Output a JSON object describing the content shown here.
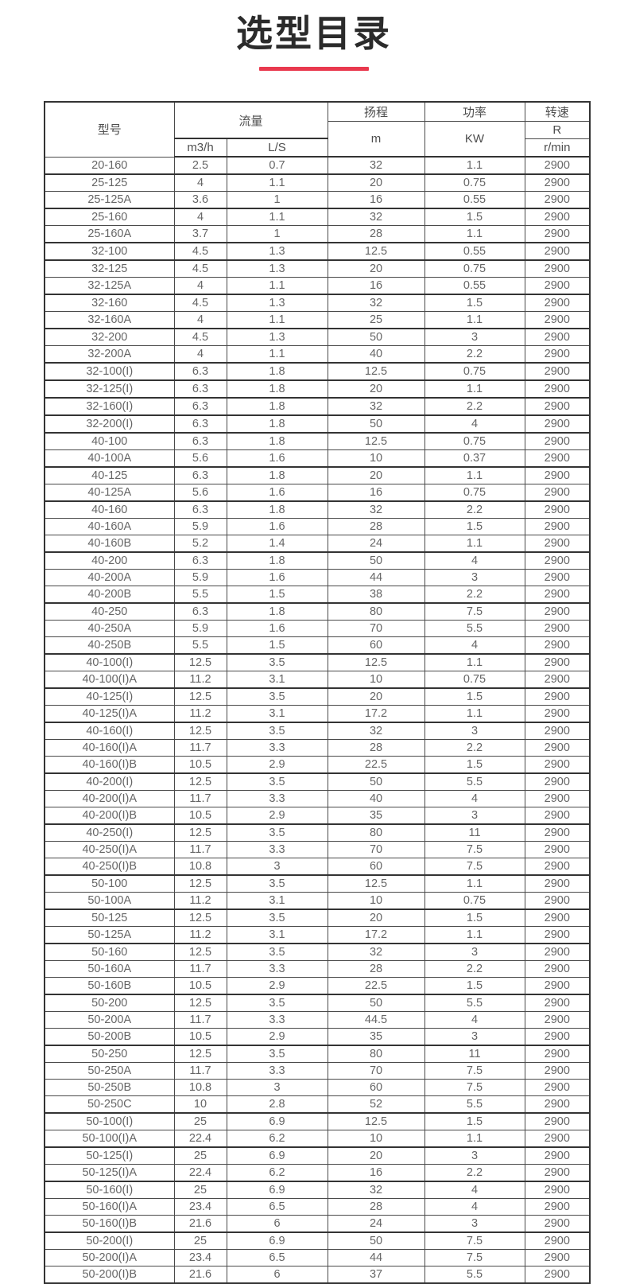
{
  "page": {
    "title": "选型目录"
  },
  "accent_color": "#e9394e",
  "table": {
    "header": {
      "model": "型号",
      "flow": "流量",
      "flow_unit_m3h": "m3/h",
      "flow_unit_ls": "L/S",
      "head": "扬程",
      "head_unit": "m",
      "power": "功率",
      "power_unit": "KW",
      "speed": "转速",
      "speed_unit_top": "R",
      "speed_unit_bottom": "r/min"
    },
    "columns": [
      "model",
      "flow_m3h",
      "flow_ls",
      "head_m",
      "power_kw",
      "speed_rpm"
    ],
    "separator_rows": [
      1,
      3,
      5,
      6,
      8,
      10,
      12,
      13,
      14,
      15,
      16,
      18,
      20,
      23,
      26,
      29,
      31,
      33,
      36,
      39,
      42,
      44,
      46,
      49,
      52,
      56,
      58,
      60,
      63
    ],
    "rows": [
      [
        "20-160",
        "2.5",
        "0.7",
        "32",
        "1.1",
        "2900"
      ],
      [
        "25-125",
        "4",
        "1.1",
        "20",
        "0.75",
        "2900"
      ],
      [
        "25-125A",
        "3.6",
        "1",
        "16",
        "0.55",
        "2900"
      ],
      [
        "25-160",
        "4",
        "1.1",
        "32",
        "1.5",
        "2900"
      ],
      [
        "25-160A",
        "3.7",
        "1",
        "28",
        "1.1",
        "2900"
      ],
      [
        "32-100",
        "4.5",
        "1.3",
        "12.5",
        "0.55",
        "2900"
      ],
      [
        "32-125",
        "4.5",
        "1.3",
        "20",
        "0.75",
        "2900"
      ],
      [
        "32-125A",
        "4",
        "1.1",
        "16",
        "0.55",
        "2900"
      ],
      [
        "32-160",
        "4.5",
        "1.3",
        "32",
        "1.5",
        "2900"
      ],
      [
        "32-160A",
        "4",
        "1.1",
        "25",
        "1.1",
        "2900"
      ],
      [
        "32-200",
        "4.5",
        "1.3",
        "50",
        "3",
        "2900"
      ],
      [
        "32-200A",
        "4",
        "1.1",
        "40",
        "2.2",
        "2900"
      ],
      [
        "32-100(I)",
        "6.3",
        "1.8",
        "12.5",
        "0.75",
        "2900"
      ],
      [
        "32-125(I)",
        "6.3",
        "1.8",
        "20",
        "1.1",
        "2900"
      ],
      [
        "32-160(I)",
        "6.3",
        "1.8",
        "32",
        "2.2",
        "2900"
      ],
      [
        "32-200(I)",
        "6.3",
        "1.8",
        "50",
        "4",
        "2900"
      ],
      [
        "40-100",
        "6.3",
        "1.8",
        "12.5",
        "0.75",
        "2900"
      ],
      [
        "40-100A",
        "5.6",
        "1.6",
        "10",
        "0.37",
        "2900"
      ],
      [
        "40-125",
        "6.3",
        "1.8",
        "20",
        "1.1",
        "2900"
      ],
      [
        "40-125A",
        "5.6",
        "1.6",
        "16",
        "0.75",
        "2900"
      ],
      [
        "40-160",
        "6.3",
        "1.8",
        "32",
        "2.2",
        "2900"
      ],
      [
        "40-160A",
        "5.9",
        "1.6",
        "28",
        "1.5",
        "2900"
      ],
      [
        "40-160B",
        "5.2",
        "1.4",
        "24",
        "1.1",
        "2900"
      ],
      [
        "40-200",
        "6.3",
        "1.8",
        "50",
        "4",
        "2900"
      ],
      [
        "40-200A",
        "5.9",
        "1.6",
        "44",
        "3",
        "2900"
      ],
      [
        "40-200B",
        "5.5",
        "1.5",
        "38",
        "2.2",
        "2900"
      ],
      [
        "40-250",
        "6.3",
        "1.8",
        "80",
        "7.5",
        "2900"
      ],
      [
        "40-250A",
        "5.9",
        "1.6",
        "70",
        "5.5",
        "2900"
      ],
      [
        "40-250B",
        "5.5",
        "1.5",
        "60",
        "4",
        "2900"
      ],
      [
        "40-100(I)",
        "12.5",
        "3.5",
        "12.5",
        "1.1",
        "2900"
      ],
      [
        "40-100(I)A",
        "11.2",
        "3.1",
        "10",
        "0.75",
        "2900"
      ],
      [
        "40-125(I)",
        "12.5",
        "3.5",
        "20",
        "1.5",
        "2900"
      ],
      [
        "40-125(I)A",
        "11.2",
        "3.1",
        "17.2",
        "1.1",
        "2900"
      ],
      [
        "40-160(I)",
        "12.5",
        "3.5",
        "32",
        "3",
        "2900"
      ],
      [
        "40-160(I)A",
        "11.7",
        "3.3",
        "28",
        "2.2",
        "2900"
      ],
      [
        "40-160(I)B",
        "10.5",
        "2.9",
        "22.5",
        "1.5",
        "2900"
      ],
      [
        "40-200(I)",
        "12.5",
        "3.5",
        "50",
        "5.5",
        "2900"
      ],
      [
        "40-200(I)A",
        "11.7",
        "3.3",
        "40",
        "4",
        "2900"
      ],
      [
        "40-200(I)B",
        "10.5",
        "2.9",
        "35",
        "3",
        "2900"
      ],
      [
        "40-250(I)",
        "12.5",
        "3.5",
        "80",
        "11",
        "2900"
      ],
      [
        "40-250(I)A",
        "11.7",
        "3.3",
        "70",
        "7.5",
        "2900"
      ],
      [
        "40-250(I)B",
        "10.8",
        "3",
        "60",
        "7.5",
        "2900"
      ],
      [
        "50-100",
        "12.5",
        "3.5",
        "12.5",
        "1.1",
        "2900"
      ],
      [
        "50-100A",
        "11.2",
        "3.1",
        "10",
        "0.75",
        "2900"
      ],
      [
        "50-125",
        "12.5",
        "3.5",
        "20",
        "1.5",
        "2900"
      ],
      [
        "50-125A",
        "11.2",
        "3.1",
        "17.2",
        "1.1",
        "2900"
      ],
      [
        "50-160",
        "12.5",
        "3.5",
        "32",
        "3",
        "2900"
      ],
      [
        "50-160A",
        "11.7",
        "3.3",
        "28",
        "2.2",
        "2900"
      ],
      [
        "50-160B",
        "10.5",
        "2.9",
        "22.5",
        "1.5",
        "2900"
      ],
      [
        "50-200",
        "12.5",
        "3.5",
        "50",
        "5.5",
        "2900"
      ],
      [
        "50-200A",
        "11.7",
        "3.3",
        "44.5",
        "4",
        "2900"
      ],
      [
        "50-200B",
        "10.5",
        "2.9",
        "35",
        "3",
        "2900"
      ],
      [
        "50-250",
        "12.5",
        "3.5",
        "80",
        "11",
        "2900"
      ],
      [
        "50-250A",
        "11.7",
        "3.3",
        "70",
        "7.5",
        "2900"
      ],
      [
        "50-250B",
        "10.8",
        "3",
        "60",
        "7.5",
        "2900"
      ],
      [
        "50-250C",
        "10",
        "2.8",
        "52",
        "5.5",
        "2900"
      ],
      [
        "50-100(I)",
        "25",
        "6.9",
        "12.5",
        "1.5",
        "2900"
      ],
      [
        "50-100(I)A",
        "22.4",
        "6.2",
        "10",
        "1.1",
        "2900"
      ],
      [
        "50-125(I)",
        "25",
        "6.9",
        "20",
        "3",
        "2900"
      ],
      [
        "50-125(I)A",
        "22.4",
        "6.2",
        "16",
        "2.2",
        "2900"
      ],
      [
        "50-160(I)",
        "25",
        "6.9",
        "32",
        "4",
        "2900"
      ],
      [
        "50-160(I)A",
        "23.4",
        "6.5",
        "28",
        "4",
        "2900"
      ],
      [
        "50-160(I)B",
        "21.6",
        "6",
        "24",
        "3",
        "2900"
      ],
      [
        "50-200(I)",
        "25",
        "6.9",
        "50",
        "7.5",
        "2900"
      ],
      [
        "50-200(I)A",
        "23.4",
        "6.5",
        "44",
        "7.5",
        "2900"
      ],
      [
        "50-200(I)B",
        "21.6",
        "6",
        "37",
        "5.5",
        "2900"
      ]
    ]
  }
}
